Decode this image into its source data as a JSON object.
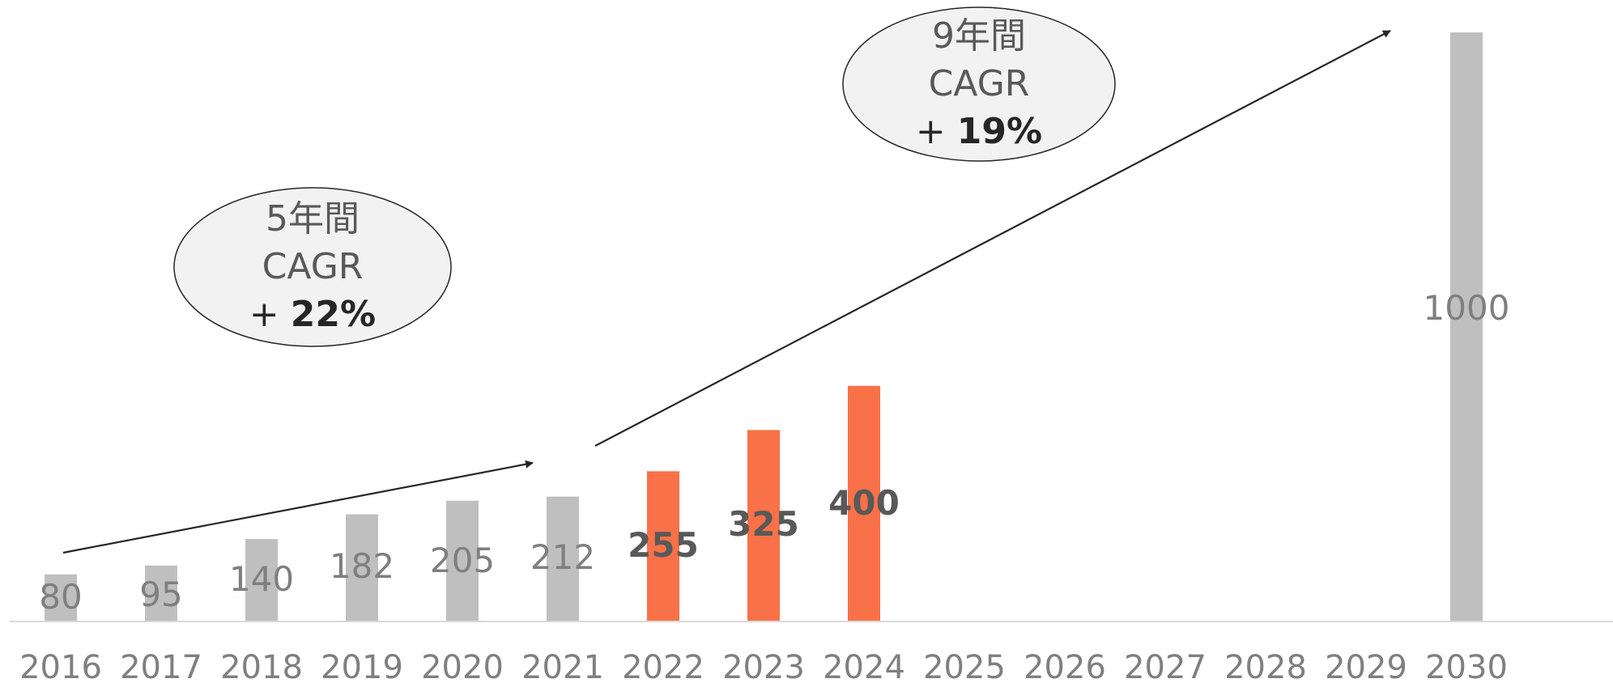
{
  "chart_data": {
    "type": "bar",
    "categories": [
      "2016",
      "2017",
      "2018",
      "2019",
      "2020",
      "2021",
      "2022",
      "2023",
      "2024",
      "2025",
      "2026",
      "2027",
      "2028",
      "2029",
      "2030"
    ],
    "values": [
      80,
      95,
      140,
      182,
      205,
      212,
      255,
      325,
      400,
      null,
      null,
      null,
      null,
      null,
      1000
    ],
    "data_labels": [
      "80",
      "95",
      "140",
      "182",
      "205",
      "212",
      "255",
      "325",
      "400",
      "",
      "",
      "",
      "",
      "",
      "1000"
    ],
    "highlighted": [
      false,
      false,
      false,
      false,
      false,
      false,
      true,
      true,
      true,
      false,
      false,
      false,
      false,
      false,
      false
    ],
    "ylim": [
      0,
      1000
    ],
    "title": "",
    "xlabel": "",
    "ylabel": "",
    "grid": false,
    "colors": {
      "bar": "#bfbfbf",
      "highlight": "#f97148",
      "bubble_fill": "#f2f2f2",
      "arrow": "#262626"
    },
    "annotations": [
      {
        "line1": "5年間",
        "line2": "CAGR",
        "prefix": "+ ",
        "value": "22%"
      },
      {
        "line1": "9年間",
        "line2": "CAGR",
        "prefix": "+ ",
        "value": "19%"
      }
    ]
  }
}
